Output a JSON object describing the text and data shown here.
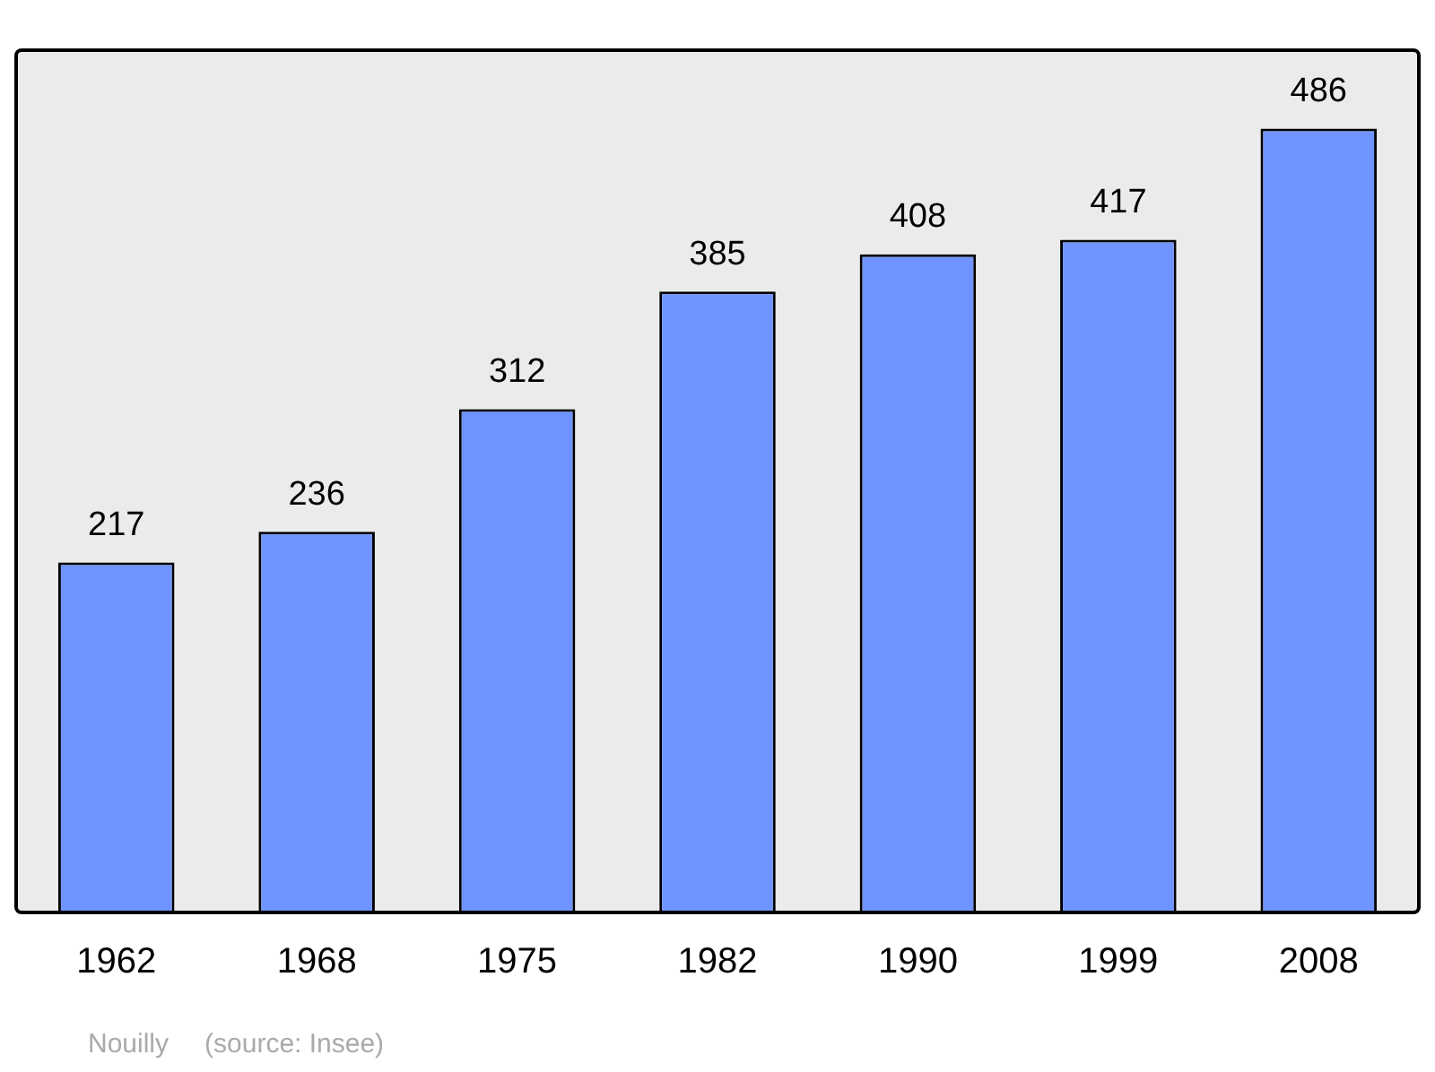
{
  "chart_data": {
    "type": "bar",
    "categories": [
      "1962",
      "1968",
      "1975",
      "1982",
      "1990",
      "1999",
      "2008"
    ],
    "values": [
      217,
      236,
      312,
      385,
      408,
      417,
      486
    ],
    "color": "#7094ff",
    "data_labels": true,
    "annotations": [
      "Nouilly",
      "(source: Insee)"
    ]
  }
}
